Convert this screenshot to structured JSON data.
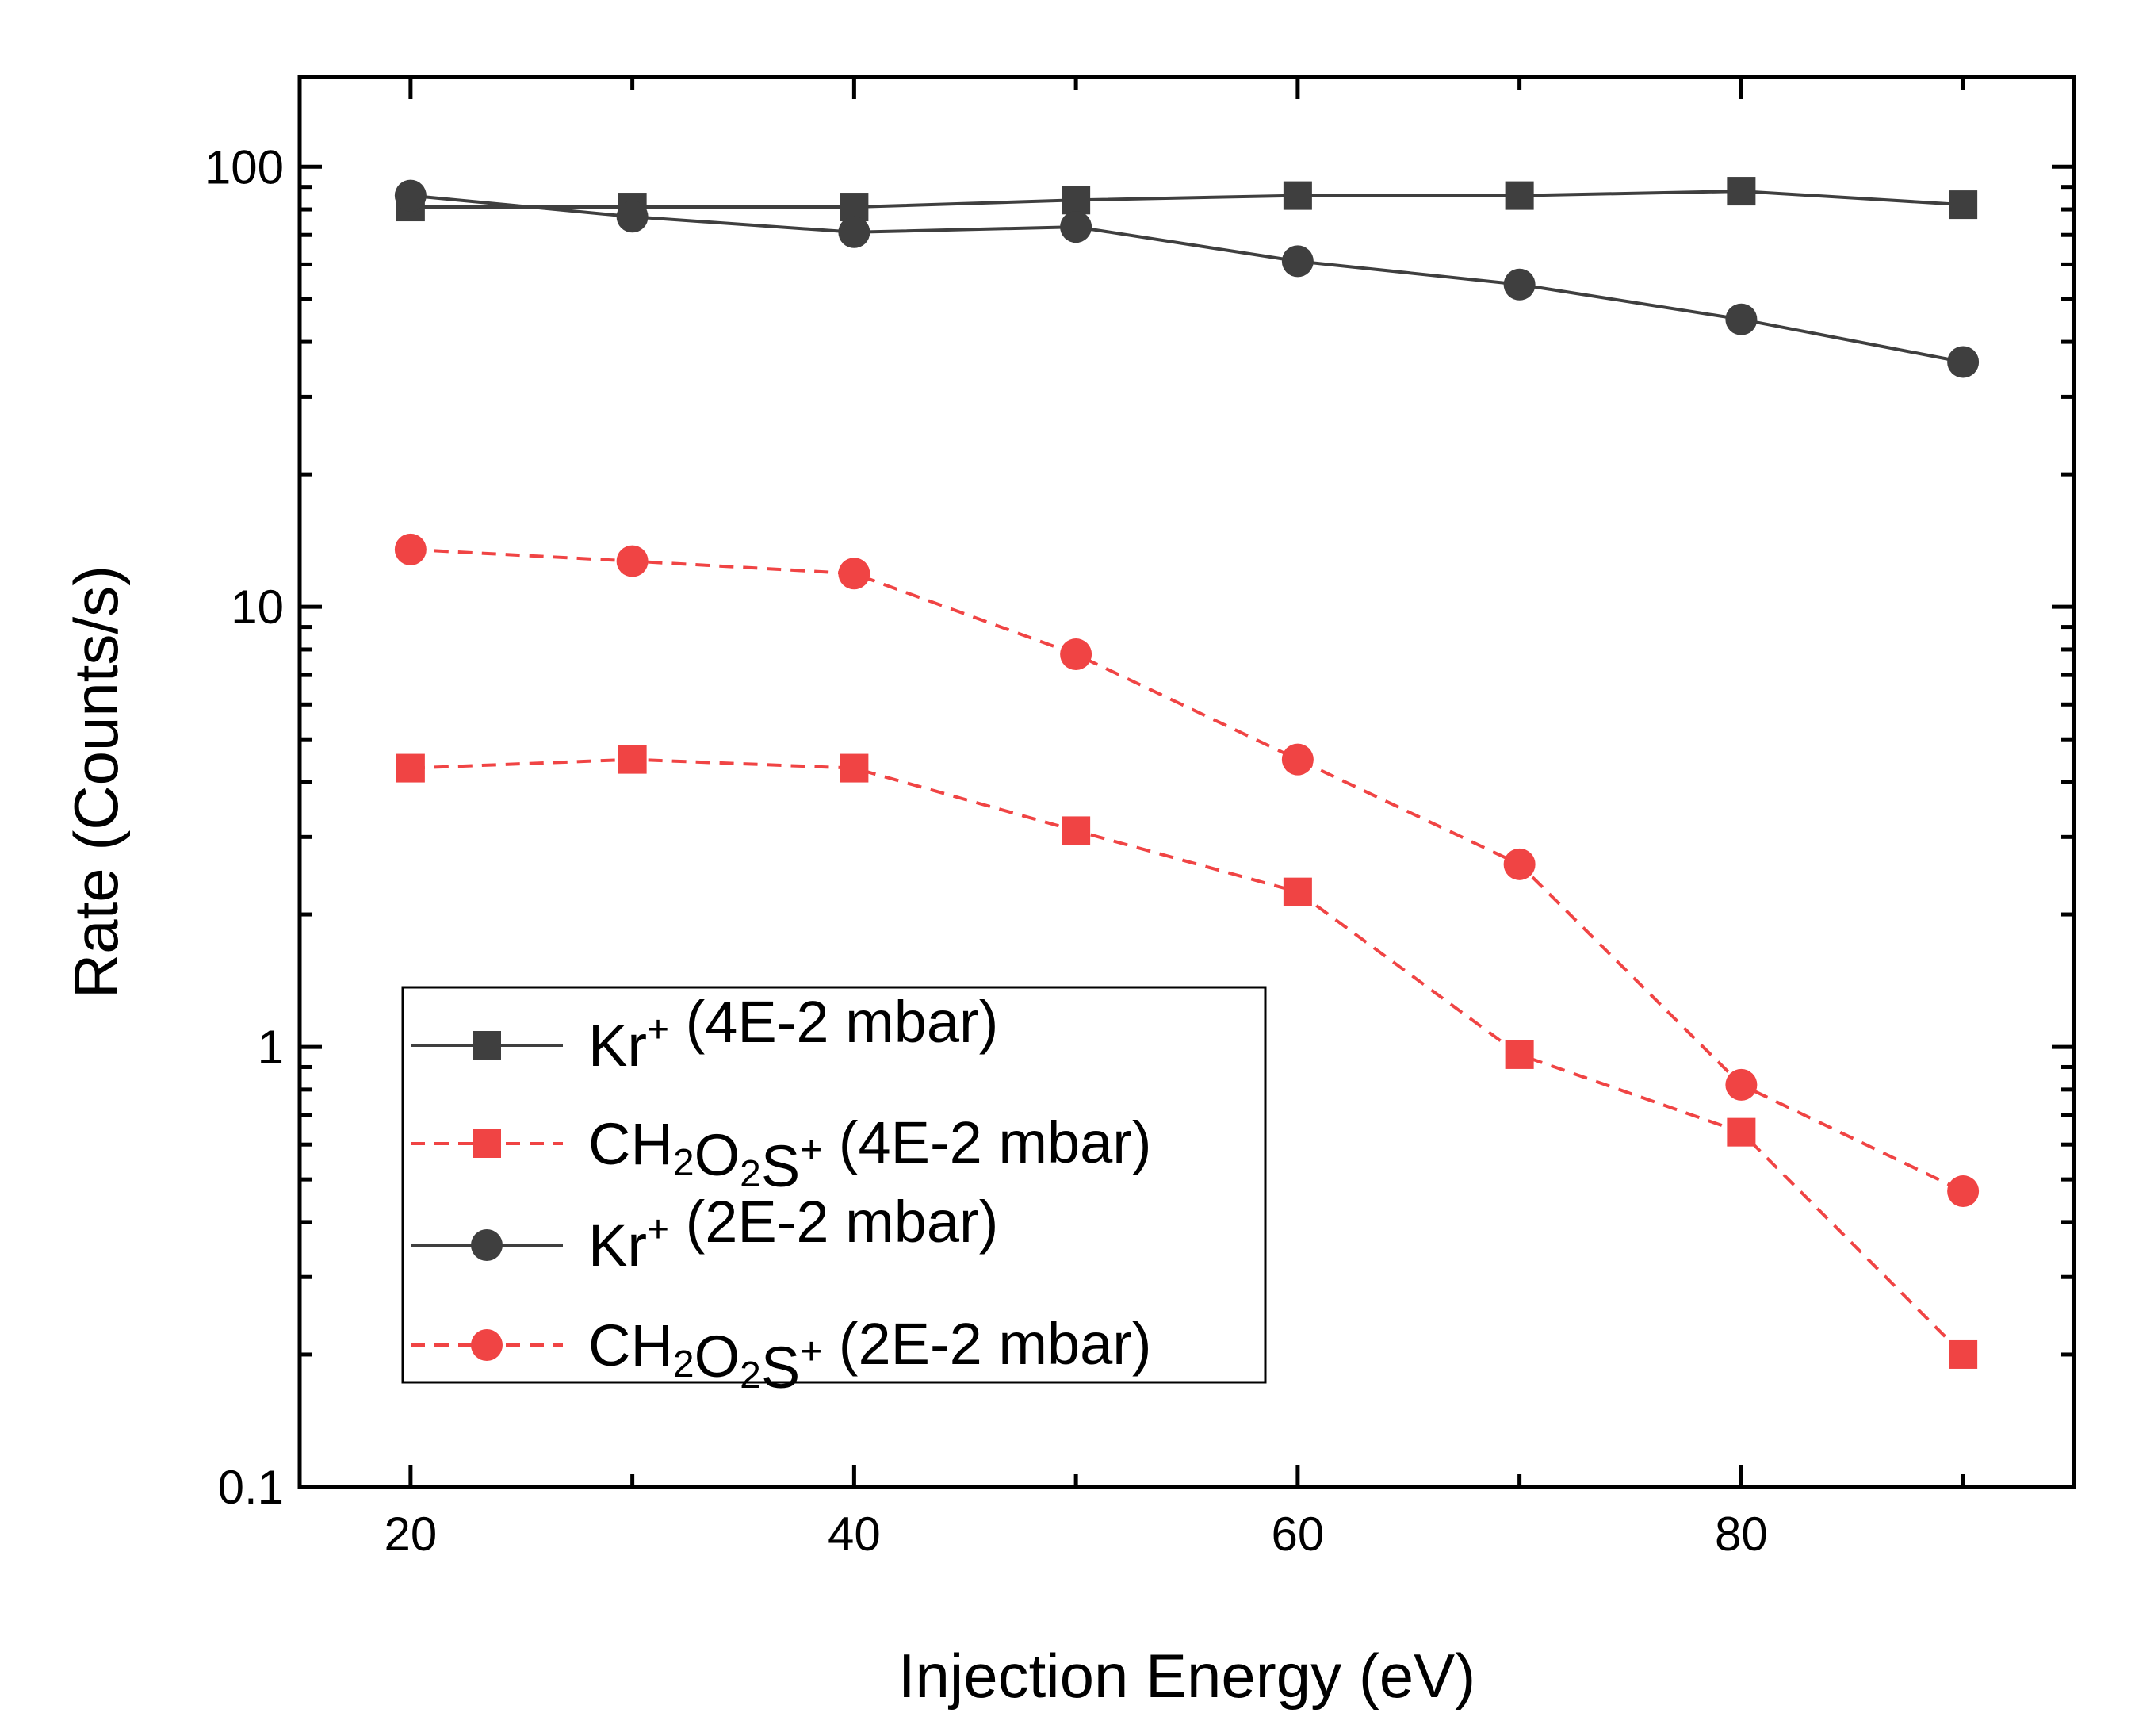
{
  "chart_data": {
    "type": "line",
    "title": "",
    "xlabel": "Injection Energy (eV)",
    "ylabel": "Rate (Counts/s)",
    "xlim": [
      15,
      95
    ],
    "ylim": [
      0.1,
      160
    ],
    "yscale": "log",
    "x": [
      20,
      30,
      40,
      50,
      60,
      70,
      80,
      90
    ],
    "x_ticks": [
      {
        "value": 20,
        "label": "20"
      },
      {
        "value": 40,
        "label": "40"
      },
      {
        "value": 60,
        "label": "60"
      },
      {
        "value": 80,
        "label": "80"
      }
    ],
    "y_ticks": [
      {
        "value": 0.1,
        "label": "0.1"
      },
      {
        "value": 1,
        "label": "1"
      },
      {
        "value": 10,
        "label": "10"
      },
      {
        "value": 100,
        "label": "100"
      }
    ],
    "legend_position": "bottom-left",
    "series": [
      {
        "name": "Kr+ (4E-2 mbar)",
        "label_main": "Kr",
        "label_sup": "+",
        "label_rest": " (4E-2 mbar)",
        "color": "#3f3f3f",
        "marker": "square",
        "dash": "solid",
        "values": [
          81,
          81,
          81,
          84,
          86,
          86,
          88,
          82
        ]
      },
      {
        "name": "CH2O2S+ (4E-2 mbar)",
        "label_main": "CH",
        "label_sub1": "2",
        "label_mid": "O",
        "label_sub2": "2",
        "label_end": "S",
        "label_sup": "+",
        "label_rest": " (4E-2 mbar)",
        "color": "#f04444",
        "marker": "square",
        "dash": "dashed",
        "values": [
          4.3,
          4.5,
          4.3,
          3.1,
          2.25,
          0.96,
          0.64,
          0.2
        ]
      },
      {
        "name": "Kr+ (2E-2 mbar)",
        "label_main": "Kr",
        "label_sup": "+",
        "label_rest": " (2E-2 mbar)",
        "color": "#3f3f3f",
        "marker": "circle",
        "dash": "solid",
        "values": [
          86,
          77,
          71,
          73,
          61,
          54,
          45,
          36
        ]
      },
      {
        "name": "CH2O2S+ (2E-2 mbar)",
        "label_main": "CH",
        "label_sub1": "2",
        "label_mid": "O",
        "label_sub2": "2",
        "label_end": "S",
        "label_sup": "+",
        "label_rest": " (2E-2 mbar)",
        "color": "#f04444",
        "marker": "circle",
        "dash": "dashed",
        "values": [
          13.5,
          12.7,
          11.9,
          7.8,
          4.5,
          2.6,
          0.82,
          0.47
        ]
      }
    ]
  }
}
